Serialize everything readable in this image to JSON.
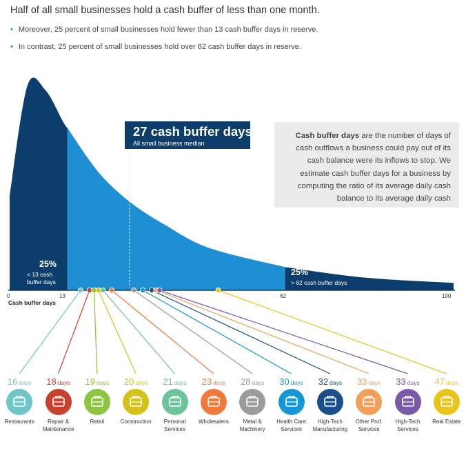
{
  "title": "Half of all small businesses hold a cash buffer of less than one month.",
  "bullets": [
    "Moreover, 25 percent of small businesses hold fewer than 13 cash buffer days in reserve.",
    "In contrast, 25 percent of small businesses hold over 62 cash buffer days in reserve."
  ],
  "median_callout": {
    "value": "27 cash buffer days",
    "label": "All small business median"
  },
  "definition": {
    "term": "Cash buffer days",
    "text": " are the number of days of cash outflows a business could pay out of its cash balance were its inflows to stop. We estimate cash buffer days for a business by computing the ratio of its average daily cash balance to its average daily cash"
  },
  "colors": {
    "dark": "#0d3e6b",
    "light": "#1f8fd4",
    "pale": "#ececec"
  },
  "chart_data": {
    "type": "area",
    "xlabel": "Cash buffer days",
    "x_ticks": [
      "0",
      "13",
      "62",
      "100"
    ],
    "xlim": [
      0,
      100
    ],
    "median": 27,
    "quartile_low": {
      "value": 13,
      "pct": "25%",
      "label": "< 13 cash buffer days"
    },
    "quartile_high": {
      "value": 62,
      "pct": "25%",
      "label": "> 62 cash buffer days"
    },
    "curve": {
      "x": [
        0,
        4,
        8,
        12,
        13,
        20,
        27,
        35,
        45,
        62,
        80,
        100
      ],
      "y": [
        0.45,
        0.97,
        0.95,
        0.8,
        0.77,
        0.56,
        0.42,
        0.31,
        0.2,
        0.11,
        0.06,
        0.035
      ]
    },
    "industries": [
      {
        "name": "Restaurants",
        "days": 16,
        "unit": "days",
        "color": "#6ec6c9",
        "icon": "plate-icon"
      },
      {
        "name": "Repair & Maintenance",
        "days": 18,
        "unit": "days",
        "color": "#c8412e",
        "icon": "toolbox-icon"
      },
      {
        "name": "Retail",
        "days": 19,
        "unit": "days",
        "color": "#8cc63f",
        "icon": "shopping-bag-icon"
      },
      {
        "name": "Construction",
        "days": 20,
        "unit": "days",
        "color": "#d4c21b",
        "icon": "hard-hat-icon"
      },
      {
        "name": "Personal Services",
        "days": 21,
        "unit": "days",
        "color": "#6cc49a",
        "icon": "hanger-icon"
      },
      {
        "name": "Wholesalers",
        "days": 23,
        "unit": "days",
        "color": "#ef7a3c",
        "icon": "box-icon"
      },
      {
        "name": "Metal & Machinery",
        "days": 28,
        "unit": "days",
        "color": "#9b9b9b",
        "icon": "gears-icon"
      },
      {
        "name": "Health Care Services",
        "days": 30,
        "unit": "days",
        "color": "#1597d5",
        "icon": "caduceus-icon"
      },
      {
        "name": "High-Tech Manufacturing",
        "days": 32,
        "unit": "days",
        "color": "#1a4f8a",
        "icon": "chip-icon"
      },
      {
        "name": "Other Prof. Services",
        "days": 33,
        "unit": "days",
        "color": "#f0a05a",
        "icon": "briefcase-icon"
      },
      {
        "name": "High-Tech Services",
        "days": 33,
        "unit": "days",
        "color": "#7a5aa8",
        "icon": "monitor-icon"
      },
      {
        "name": "Real Estate",
        "days": 47,
        "unit": "days",
        "color": "#e8c51b",
        "icon": "house-sign-icon"
      }
    ]
  }
}
